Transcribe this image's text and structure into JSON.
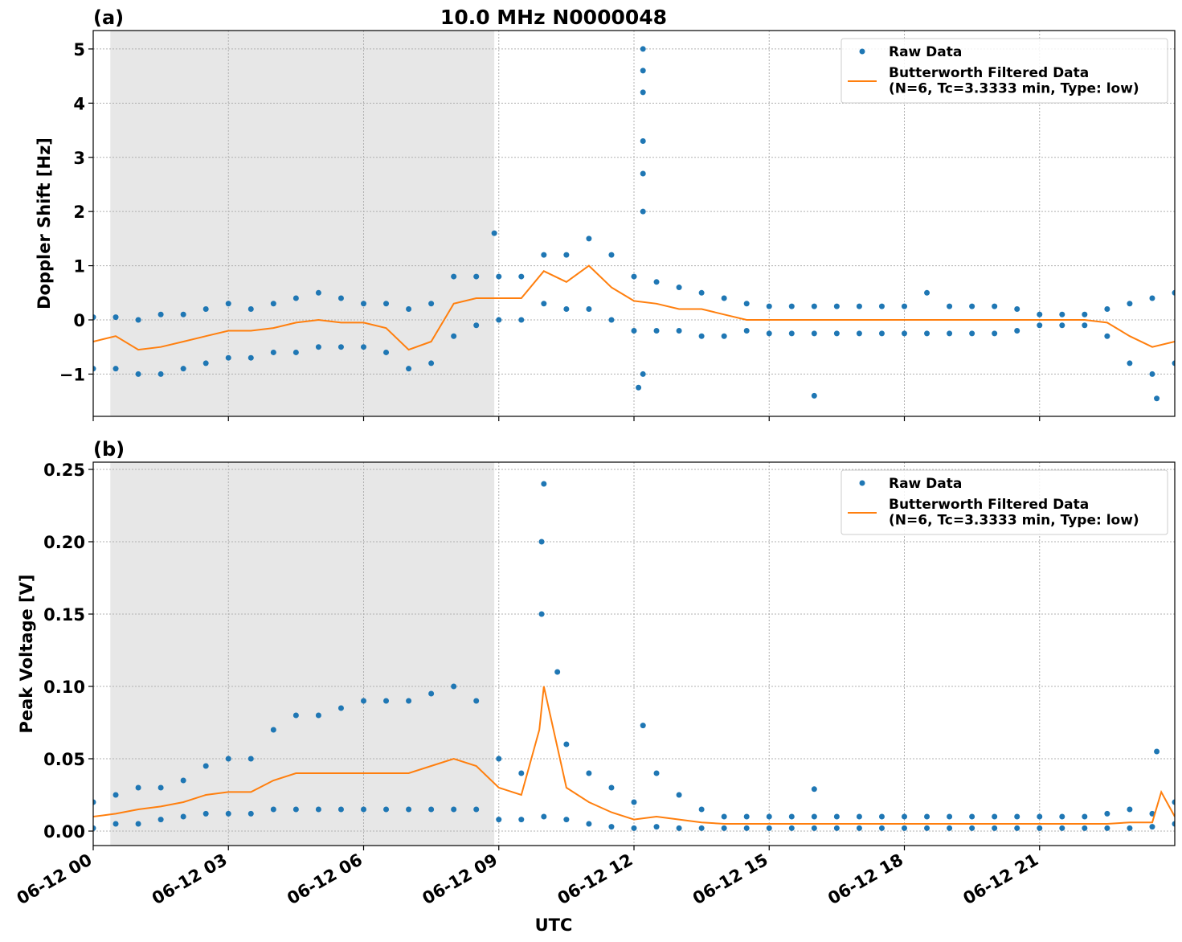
{
  "chart_data": [
    {
      "type": "scatter-line",
      "panel_label": "(a)",
      "title": "10.0 MHz N0000048",
      "y_label": "Doppler Shift [Hz]",
      "xlim": [
        0,
        24
      ],
      "xticks": [
        0,
        3,
        6,
        9,
        12,
        15,
        18,
        21
      ],
      "ylim": [
        -1.78,
        5.34
      ],
      "yticks": [
        {
          "value": -1,
          "label": "−1"
        },
        0,
        1,
        2,
        3,
        4,
        5
      ],
      "grid": true,
      "legend": "upper right",
      "shade_xlim": [
        0.38,
        8.9
      ],
      "series": [
        {
          "name": "Raw Data",
          "color": "#1f77b4",
          "kind": "points",
          "x": [
            0,
            0,
            0.5,
            0.5,
            1,
            1,
            1.5,
            1.5,
            2,
            2,
            2.5,
            2.5,
            3,
            3,
            3.5,
            3.5,
            4,
            4,
            4.5,
            4.5,
            5,
            5,
            5.5,
            5.5,
            6,
            6,
            6.5,
            6.5,
            7,
            7,
            7.5,
            7.5,
            8,
            8,
            8.5,
            8.5,
            9,
            9,
            9.5,
            9.5,
            10,
            10,
            10.5,
            10.5,
            11,
            11,
            11.5,
            11.5,
            12,
            12,
            12.5,
            12.5,
            13,
            13,
            13.5,
            13.5,
            14,
            14,
            14.5,
            14.5,
            15,
            15,
            15.5,
            15.5,
            16,
            16,
            16.5,
            16.5,
            17,
            17,
            17.5,
            17.5,
            18,
            18,
            18.5,
            18.5,
            19,
            19,
            19.5,
            19.5,
            20,
            20,
            20.5,
            20.5,
            21,
            21,
            21.5,
            21.5,
            22,
            22,
            22.5,
            22.5,
            23,
            23,
            23.5,
            23.5,
            24,
            24,
            8.9,
            12.2,
            12.2,
            12.2,
            12.2,
            12.2,
            12.2,
            12.2,
            12.1,
            16,
            23.6
          ],
          "values": [
            -0.9,
            0.05,
            -0.9,
            0.05,
            -1.0,
            0.0,
            -1.0,
            0.1,
            -0.9,
            0.1,
            -0.8,
            0.2,
            -0.7,
            0.3,
            -0.7,
            0.2,
            -0.6,
            0.3,
            -0.6,
            0.4,
            -0.5,
            0.5,
            -0.5,
            0.4,
            -0.5,
            0.3,
            -0.6,
            0.3,
            -0.9,
            0.2,
            -0.8,
            0.3,
            -0.3,
            0.8,
            -0.1,
            0.8,
            0.0,
            0.8,
            0.0,
            0.8,
            0.3,
            1.2,
            0.2,
            1.2,
            0.2,
            1.5,
            0.0,
            1.2,
            -0.2,
            0.8,
            -0.2,
            0.7,
            -0.2,
            0.6,
            -0.3,
            0.5,
            -0.3,
            0.4,
            -0.2,
            0.3,
            -0.25,
            0.25,
            -0.25,
            0.25,
            -0.25,
            0.25,
            -0.25,
            0.25,
            -0.25,
            0.25,
            -0.25,
            0.25,
            -0.25,
            0.25,
            -0.25,
            0.5,
            -0.25,
            0.25,
            -0.25,
            0.25,
            -0.25,
            0.25,
            -0.2,
            0.2,
            -0.1,
            0.1,
            -0.1,
            0.1,
            -0.1,
            0.1,
            -0.3,
            0.2,
            -0.8,
            0.3,
            -1.0,
            0.4,
            -0.8,
            0.5,
            1.6,
            5.0,
            4.6,
            4.2,
            3.3,
            2.7,
            2.0,
            -1.0,
            -1.25,
            -1.4,
            -1.45
          ]
        },
        {
          "name": "Butterworth Filtered Data\n(N=6, Tc=3.3333 min, Type: low)",
          "color": "#ff7f0e",
          "kind": "line",
          "x": [
            0,
            0.5,
            1,
            1.5,
            2,
            2.5,
            3,
            3.5,
            4,
            4.5,
            5,
            5.5,
            6,
            6.5,
            7,
            7.5,
            8,
            8.5,
            9,
            9.5,
            10,
            10.5,
            11,
            11.5,
            12,
            12.5,
            13,
            13.5,
            14,
            14.5,
            15,
            15.5,
            16,
            16.5,
            17,
            17.5,
            18,
            18.5,
            19,
            19.5,
            20,
            20.5,
            21,
            21.5,
            22,
            22.5,
            23,
            23.5,
            24
          ],
          "values": [
            -0.4,
            -0.3,
            -0.55,
            -0.5,
            -0.4,
            -0.3,
            -0.2,
            -0.2,
            -0.15,
            -0.05,
            0.0,
            -0.05,
            -0.05,
            -0.15,
            -0.55,
            -0.4,
            0.3,
            0.4,
            0.4,
            0.4,
            0.9,
            0.7,
            1.0,
            0.6,
            0.35,
            0.3,
            0.2,
            0.2,
            0.1,
            0.0,
            0.0,
            0.0,
            0.0,
            0.0,
            0.0,
            0.0,
            0.0,
            0.0,
            0.0,
            0.0,
            0.0,
            0.0,
            0.0,
            0.0,
            0.0,
            -0.05,
            -0.3,
            -0.5,
            -0.4
          ]
        }
      ]
    },
    {
      "type": "scatter-line",
      "panel_label": "(b)",
      "y_label": "Peak Voltage [V]",
      "x_label": "UTC",
      "xlim": [
        0,
        24
      ],
      "xticks": [
        {
          "value": 0,
          "label": "06-12 00"
        },
        {
          "value": 3,
          "label": "06-12 03"
        },
        {
          "value": 6,
          "label": "06-12 06"
        },
        {
          "value": 9,
          "label": "06-12 09"
        },
        {
          "value": 12,
          "label": "06-12 12"
        },
        {
          "value": 15,
          "label": "06-12 15"
        },
        {
          "value": 18,
          "label": "06-12 18"
        },
        {
          "value": 21,
          "label": "06-12 21"
        }
      ],
      "ylim": [
        -0.01,
        0.255
      ],
      "yticks": [
        {
          "value": 0,
          "label": "0.00"
        },
        {
          "value": 0.05,
          "label": "0.05"
        },
        {
          "value": 0.1,
          "label": "0.10"
        },
        {
          "value": 0.15,
          "label": "0.15"
        },
        {
          "value": 0.2,
          "label": "0.20"
        },
        {
          "value": 0.25,
          "label": "0.25"
        }
      ],
      "grid": true,
      "legend": "upper right",
      "shade_xlim": [
        0.38,
        8.9
      ],
      "series": [
        {
          "name": "Raw Data",
          "color": "#1f77b4",
          "kind": "points",
          "x": [
            0,
            0,
            0.5,
            0.5,
            1,
            1,
            1.5,
            1.5,
            2,
            2,
            2.5,
            2.5,
            3,
            3,
            3.5,
            3.5,
            4,
            4,
            4.5,
            4.5,
            5,
            5,
            5.5,
            5.5,
            6,
            6,
            6.5,
            6.5,
            7,
            7,
            7.5,
            7.5,
            8,
            8,
            8.5,
            8.5,
            9,
            9,
            9.5,
            9.5,
            10,
            10,
            10.5,
            10.5,
            11,
            11,
            11.5,
            11.5,
            12,
            12,
            12.5,
            12.5,
            13,
            13,
            13.5,
            13.5,
            14,
            14,
            14.5,
            14.5,
            15,
            15,
            15.5,
            15.5,
            16,
            16,
            16.5,
            16.5,
            17,
            17,
            17.5,
            17.5,
            18,
            18,
            18.5,
            18.5,
            19,
            19,
            19.5,
            19.5,
            20,
            20,
            20.5,
            20.5,
            21,
            21,
            21.5,
            21.5,
            22,
            22,
            22.5,
            22.5,
            23,
            23,
            23.5,
            23.5,
            24,
            24,
            9.95,
            9.95,
            12.2,
            16,
            23.6,
            10.3
          ],
          "values": [
            0.002,
            0.02,
            0.005,
            0.025,
            0.005,
            0.03,
            0.008,
            0.03,
            0.01,
            0.035,
            0.012,
            0.045,
            0.012,
            0.05,
            0.012,
            0.05,
            0.015,
            0.07,
            0.015,
            0.08,
            0.015,
            0.08,
            0.015,
            0.085,
            0.015,
            0.09,
            0.015,
            0.09,
            0.015,
            0.09,
            0.015,
            0.095,
            0.015,
            0.1,
            0.015,
            0.09,
            0.008,
            0.05,
            0.008,
            0.04,
            0.01,
            0.24,
            0.008,
            0.06,
            0.005,
            0.04,
            0.003,
            0.03,
            0.002,
            0.02,
            0.003,
            0.04,
            0.002,
            0.025,
            0.002,
            0.015,
            0.002,
            0.01,
            0.002,
            0.01,
            0.002,
            0.01,
            0.002,
            0.01,
            0.002,
            0.01,
            0.002,
            0.01,
            0.002,
            0.01,
            0.002,
            0.01,
            0.002,
            0.01,
            0.002,
            0.01,
            0.002,
            0.01,
            0.002,
            0.01,
            0.002,
            0.01,
            0.002,
            0.01,
            0.002,
            0.01,
            0.002,
            0.01,
            0.002,
            0.01,
            0.002,
            0.012,
            0.002,
            0.015,
            0.003,
            0.012,
            0.005,
            0.02,
            0.2,
            0.15,
            0.073,
            0.029,
            0.055,
            0.11
          ]
        },
        {
          "name": "Butterworth Filtered Data\n(N=6, Tc=3.3333 min, Type: low)",
          "color": "#ff7f0e",
          "kind": "line",
          "x": [
            0,
            0.5,
            1,
            1.5,
            2,
            2.5,
            3,
            3.5,
            4,
            4.5,
            5,
            5.5,
            6,
            6.5,
            7,
            7.5,
            8,
            8.5,
            9,
            9.5,
            9.9,
            10,
            10.5,
            11,
            11.5,
            12,
            12.5,
            13,
            13.5,
            14,
            14.5,
            15,
            15.5,
            16,
            16.5,
            17,
            17.5,
            18,
            18.5,
            19,
            19.5,
            20,
            20.5,
            21,
            21.5,
            22,
            22.5,
            23,
            23.5,
            23.7,
            24
          ],
          "values": [
            0.01,
            0.012,
            0.015,
            0.017,
            0.02,
            0.025,
            0.027,
            0.027,
            0.035,
            0.04,
            0.04,
            0.04,
            0.04,
            0.04,
            0.04,
            0.045,
            0.05,
            0.045,
            0.03,
            0.025,
            0.07,
            0.1,
            0.03,
            0.02,
            0.013,
            0.008,
            0.01,
            0.008,
            0.006,
            0.005,
            0.005,
            0.005,
            0.005,
            0.005,
            0.005,
            0.005,
            0.005,
            0.005,
            0.005,
            0.005,
            0.005,
            0.005,
            0.005,
            0.005,
            0.005,
            0.005,
            0.005,
            0.006,
            0.006,
            0.027,
            0.01
          ]
        }
      ]
    }
  ]
}
